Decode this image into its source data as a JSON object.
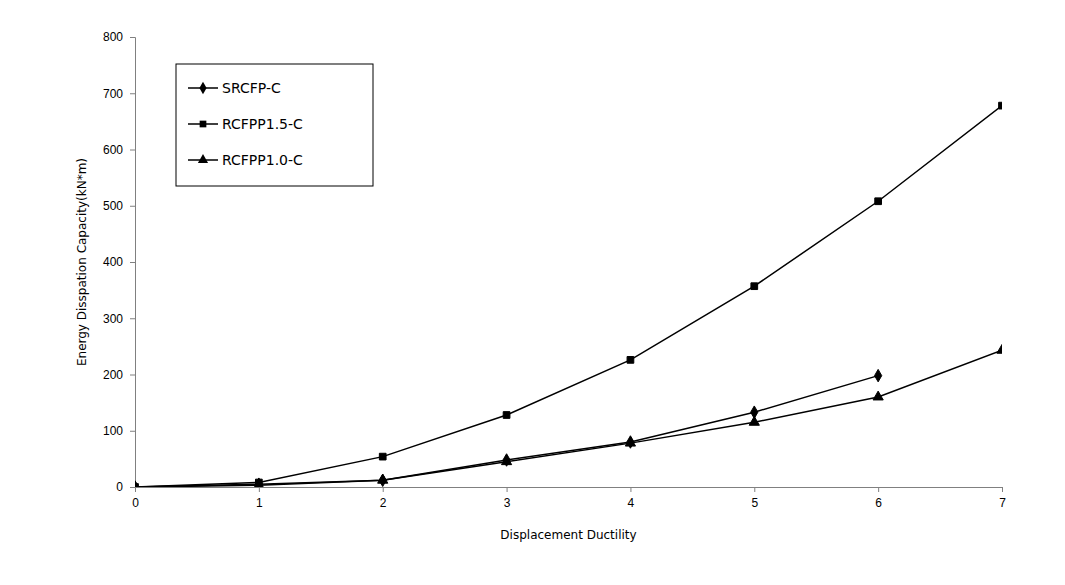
{
  "chart_data": {
    "type": "line",
    "x_label": "Displacement Ductility",
    "y_label": "Energy Disspation Capacity(kN*m)",
    "x": [
      0,
      1,
      2,
      3,
      4,
      5,
      6,
      7
    ],
    "series": [
      {
        "name": "SRCFP-C",
        "color": "#000000",
        "marker": "diamond",
        "line_style": "solid",
        "values": [
          0,
          5,
          12,
          48,
          80,
          133,
          198,
          null
        ]
      },
      {
        "name": "RCFPP1.5-C",
        "color": "#000000",
        "marker": "square",
        "line_style": "solid",
        "values": [
          0,
          8,
          54,
          128,
          226,
          357,
          508,
          678
        ]
      },
      {
        "name": "RCFPP1.0-C",
        "color": "#000000",
        "marker": "triangle",
        "line_style": "solid",
        "values": [
          0,
          3,
          12,
          45,
          78,
          115,
          160,
          243
        ]
      }
    ],
    "xlim": [
      0,
      7
    ],
    "xticks": [
      0,
      1,
      2,
      3,
      4,
      5,
      6,
      7
    ],
    "ylim": [
      0,
      800
    ],
    "yticks": [
      0,
      100,
      200,
      300,
      400,
      500,
      600,
      700,
      800
    ],
    "grid": false,
    "legend": "upper left"
  }
}
